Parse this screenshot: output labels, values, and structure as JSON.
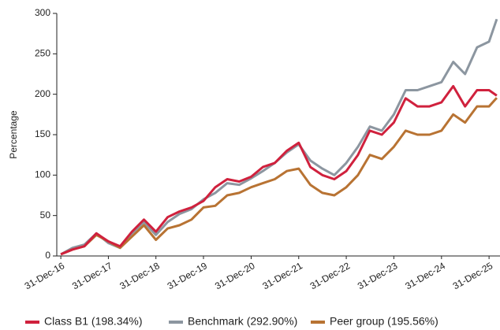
{
  "chart_data": {
    "type": "line",
    "ylabel": "Percentage",
    "x": [
      "2016-12-31",
      "2017-03-31",
      "2017-06-30",
      "2017-09-30",
      "2017-12-31",
      "2018-03-31",
      "2018-06-30",
      "2018-09-30",
      "2018-12-31",
      "2019-03-31",
      "2019-06-30",
      "2019-09-30",
      "2019-12-31",
      "2020-03-31",
      "2020-06-30",
      "2020-09-30",
      "2020-12-31",
      "2021-03-31",
      "2021-06-30",
      "2021-09-30",
      "2021-12-31",
      "2022-03-31",
      "2022-06-30",
      "2022-09-30",
      "2022-12-31",
      "2023-03-31",
      "2023-06-30",
      "2023-09-30",
      "2023-12-31",
      "2024-03-31",
      "2024-06-30",
      "2024-09-30",
      "2024-12-31",
      "2025-03-31",
      "2025-06-30",
      "2025-09-30",
      "2025-12-31",
      "2026-02-28"
    ],
    "series": [
      {
        "name": "Class B1 (198.34%)",
        "color": "#d0213d",
        "values": [
          2,
          8,
          12,
          28,
          18,
          12,
          30,
          45,
          30,
          48,
          55,
          60,
          68,
          85,
          95,
          92,
          98,
          110,
          115,
          130,
          140,
          110,
          100,
          95,
          105,
          125,
          155,
          150,
          165,
          195,
          185,
          185,
          190,
          210,
          185,
          205,
          205,
          198.34
        ]
      },
      {
        "name": "Benchmark (292.90%)",
        "color": "#8c96a0",
        "values": [
          2,
          10,
          14,
          28,
          16,
          10,
          28,
          42,
          26,
          42,
          52,
          58,
          70,
          78,
          90,
          88,
          96,
          105,
          115,
          128,
          138,
          118,
          108,
          100,
          115,
          135,
          160,
          155,
          175,
          205,
          205,
          210,
          215,
          240,
          225,
          258,
          265,
          292.9
        ]
      },
      {
        "name": "Peer group (195.56%)",
        "color": "#b87333",
        "values": [
          2,
          8,
          12,
          26,
          18,
          10,
          24,
          38,
          20,
          34,
          38,
          45,
          60,
          62,
          75,
          78,
          85,
          90,
          95,
          105,
          108,
          88,
          78,
          75,
          85,
          100,
          125,
          120,
          135,
          155,
          150,
          150,
          155,
          175,
          165,
          185,
          185,
          195.56
        ]
      }
    ],
    "xlim": [
      "2016-11-30",
      "2026-03-25"
    ],
    "xticks": [
      {
        "value": "2016-12-31",
        "label": "31-Dec-16"
      },
      {
        "value": "2017-12-31",
        "label": "31-Dec-17"
      },
      {
        "value": "2018-12-31",
        "label": "31-Dec-18"
      },
      {
        "value": "2019-12-31",
        "label": "31-Dec-19"
      },
      {
        "value": "2020-12-31",
        "label": "31-Dec-20"
      },
      {
        "value": "2021-12-31",
        "label": "31-Dec-21"
      },
      {
        "value": "2022-12-31",
        "label": "31-Dec-22"
      },
      {
        "value": "2023-12-31",
        "label": "31-Dec-23"
      },
      {
        "value": "2024-12-31",
        "label": "31-Dec-24"
      },
      {
        "value": "2025-12-31",
        "label": "31-Dec-25"
      }
    ],
    "ylim": [
      0,
      300
    ],
    "yticks": [
      0,
      50,
      100,
      150,
      200,
      250,
      300
    ],
    "grid": false,
    "legend": "bottom"
  }
}
